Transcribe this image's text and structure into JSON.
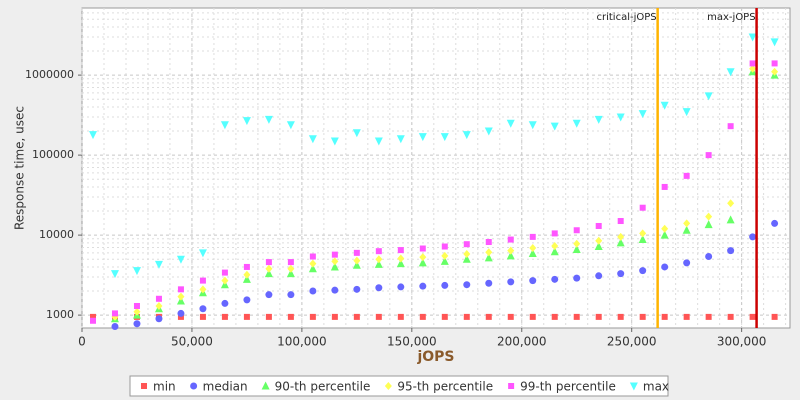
{
  "chart_data": {
    "type": "scatter",
    "x_label": "jOPS",
    "y_label": "Response time, usec",
    "log_y": true,
    "grid": true,
    "xlim": [
      0,
      322000
    ],
    "ylim": [
      690,
      6900000
    ],
    "xticks": [
      0,
      {
        "value": 50000,
        "label": "50,000"
      },
      {
        "value": 100000,
        "label": "100,000"
      },
      {
        "value": 150000,
        "label": "150,000"
      },
      {
        "value": 200000,
        "label": "200,000"
      },
      {
        "value": 250000,
        "label": "250,000"
      },
      {
        "value": 300000,
        "label": "300,000"
      }
    ],
    "yticks": [
      1000,
      10000,
      100000,
      1000000
    ],
    "vlines": [
      {
        "label": "critical-jOPS",
        "value": 261800,
        "color": "#ffb400"
      },
      {
        "label": "max-jOPS",
        "value": 306800,
        "color": "#cc0000"
      }
    ],
    "x": [
      5000,
      15000,
      25000,
      35000,
      45000,
      55000,
      65000,
      75000,
      85000,
      95000,
      105000,
      115000,
      125000,
      135000,
      145000,
      155000,
      165000,
      175000,
      185000,
      195000,
      205000,
      215000,
      225000,
      235000,
      245000,
      255000,
      265000,
      275000,
      285000,
      295000,
      305000,
      315000
    ],
    "series": [
      {
        "name": "min",
        "color": "#ff5555",
        "marker": "square",
        "values": [
          950,
          950,
          950,
          950,
          950,
          950,
          950,
          950,
          950,
          950,
          950,
          950,
          950,
          950,
          950,
          950,
          950,
          950,
          950,
          950,
          950,
          950,
          950,
          950,
          950,
          950,
          950,
          950,
          950,
          950,
          950,
          950
        ]
      },
      {
        "name": "median",
        "color": "#6666ff",
        "marker": "circle",
        "values": [
          null,
          720,
          780,
          900,
          1050,
          1200,
          1400,
          1550,
          1800,
          1800,
          2000,
          2050,
          2100,
          2200,
          2250,
          2300,
          2350,
          2400,
          2500,
          2600,
          2700,
          2800,
          2900,
          3100,
          3300,
          3600,
          4000,
          4500,
          5400,
          6400,
          9500,
          14000
        ]
      },
      {
        "name": "90-th percentile",
        "color": "#66ff66",
        "marker": "triangle-up",
        "values": [
          null,
          900,
          1000,
          1200,
          1500,
          1900,
          2400,
          2800,
          3300,
          3300,
          3800,
          4000,
          4200,
          4300,
          4400,
          4500,
          4700,
          5000,
          5200,
          5500,
          5900,
          6200,
          6600,
          7200,
          8000,
          8800,
          10000,
          11500,
          13500,
          15500,
          1100000,
          1000000
        ]
      },
      {
        "name": "95-th percentile",
        "color": "#ffff55",
        "marker": "diamond",
        "values": [
          null,
          950,
          1100,
          1300,
          1700,
          2100,
          2700,
          3200,
          3800,
          3800,
          4400,
          4700,
          4800,
          5000,
          5100,
          5300,
          5500,
          5800,
          6100,
          6400,
          6900,
          7300,
          7800,
          8500,
          9500,
          10500,
          12000,
          14000,
          17000,
          25000,
          1200000,
          1100000
        ]
      },
      {
        "name": "99-th percentile",
        "color": "#ff55ff",
        "marker": "square",
        "values": [
          850,
          1050,
          1300,
          1600,
          2100,
          2700,
          3400,
          4000,
          4600,
          4600,
          5400,
          5700,
          6000,
          6300,
          6500,
          6800,
          7200,
          7700,
          8200,
          8800,
          9500,
          10500,
          11500,
          13000,
          15000,
          22000,
          40000,
          55000,
          100000,
          230000,
          1400000,
          1400000
        ]
      },
      {
        "name": "max",
        "color": "#55ffff",
        "marker": "triangle-down",
        "values": [
          180000,
          3300,
          3600,
          4300,
          5000,
          6000,
          240000,
          270000,
          280000,
          240000,
          160000,
          150000,
          190000,
          150000,
          160000,
          170000,
          170000,
          180000,
          200000,
          250000,
          240000,
          230000,
          250000,
          280000,
          300000,
          330000,
          420000,
          350000,
          550000,
          1100000,
          3000000,
          2600000
        ]
      }
    ]
  }
}
